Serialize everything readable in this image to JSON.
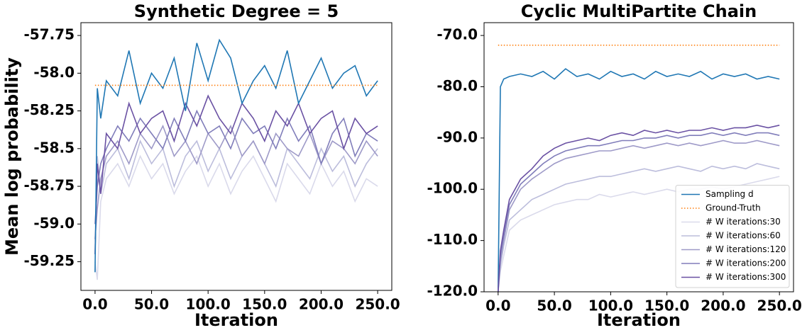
{
  "chart_data": [
    {
      "type": "line",
      "title": "Synthetic Degree = 5",
      "x_label": "Iteration",
      "y_label": "Mean log probability",
      "x": [
        0,
        2,
        5,
        10,
        20,
        30,
        40,
        50,
        60,
        70,
        80,
        90,
        100,
        110,
        120,
        130,
        140,
        150,
        160,
        170,
        180,
        190,
        200,
        210,
        220,
        230,
        240,
        250
      ],
      "xlim": [
        -12.5,
        262.5
      ],
      "ylim": [
        -59.44,
        -57.665
      ],
      "xticks": [
        {
          "value": 0,
          "label": "0.0"
        },
        {
          "value": 50,
          "label": "50.0"
        },
        {
          "value": 100,
          "label": "100.0"
        },
        {
          "value": 150,
          "label": "150.0"
        },
        {
          "value": 200,
          "label": "200.0"
        },
        {
          "value": 250,
          "label": "250.0"
        }
      ],
      "yticks": [
        -57.75,
        {
          "value": -58,
          "label": "-58.0"
        },
        -58.25,
        -58.5,
        -58.75,
        {
          "value": -59,
          "label": "-59.0"
        },
        -59.25
      ],
      "series": [
        {
          "color": "#dadaeb",
          "values": [
            -59.25,
            -59.37,
            -58.85,
            -58.7,
            -58.6,
            -58.75,
            -58.55,
            -58.7,
            -58.6,
            -58.8,
            -58.65,
            -58.55,
            -58.75,
            -58.6,
            -58.8,
            -58.65,
            -58.55,
            -58.7,
            -58.85,
            -58.6,
            -58.7,
            -58.8,
            -58.6,
            -58.75,
            -58.65,
            -58.85,
            -58.7,
            -58.75
          ]
        },
        {
          "color": "#bcbddc",
          "values": [
            -59.2,
            -58.55,
            -58.8,
            -58.6,
            -58.5,
            -58.7,
            -58.45,
            -58.6,
            -58.5,
            -58.75,
            -58.55,
            -58.45,
            -58.65,
            -58.5,
            -58.7,
            -58.55,
            -58.45,
            -58.6,
            -58.75,
            -58.5,
            -58.6,
            -58.7,
            -58.5,
            -58.65,
            -58.55,
            -58.75,
            -58.6,
            -58.5
          ]
        },
        {
          "color": "#9e9ac8",
          "values": [
            -59.1,
            -58.9,
            -58.7,
            -58.55,
            -58.45,
            -58.6,
            -58.4,
            -58.5,
            -58.35,
            -58.55,
            -58.45,
            -58.6,
            -58.4,
            -58.5,
            -58.35,
            -58.55,
            -58.45,
            -58.6,
            -58.4,
            -58.5,
            -58.55,
            -58.4,
            -58.6,
            -58.45,
            -58.5,
            -58.6,
            -58.45,
            -58.55
          ]
        },
        {
          "color": "#807dba",
          "values": [
            -59.0,
            -58.75,
            -58.6,
            -58.5,
            -58.35,
            -58.45,
            -58.3,
            -58.4,
            -58.5,
            -58.3,
            -58.45,
            -58.25,
            -58.4,
            -58.35,
            -58.5,
            -58.3,
            -58.4,
            -58.35,
            -58.5,
            -58.3,
            -58.45,
            -58.35,
            -58.6,
            -58.4,
            -58.3,
            -58.55,
            -58.4,
            -58.45
          ]
        },
        {
          "color": "#6a51a3",
          "values": [
            -59.2,
            -58.6,
            -58.8,
            -58.4,
            -58.5,
            -58.2,
            -58.4,
            -58.3,
            -58.25,
            -58.45,
            -58.2,
            -58.35,
            -58.15,
            -58.3,
            -58.4,
            -58.2,
            -58.3,
            -58.45,
            -58.25,
            -58.35,
            -58.2,
            -58.4,
            -58.3,
            -58.25,
            -58.5,
            -58.3,
            -58.4,
            -58.35
          ]
        },
        {
          "color": "#1f77b4",
          "values": [
            -59.32,
            -58.1,
            -58.3,
            -58.05,
            -58.15,
            -57.85,
            -58.2,
            -58.0,
            -58.1,
            -57.9,
            -58.25,
            -57.8,
            -58.05,
            -57.78,
            -57.9,
            -58.2,
            -58.05,
            -57.95,
            -58.1,
            -57.85,
            -58.2,
            -58.05,
            -57.9,
            -58.1,
            -58.0,
            -57.95,
            -58.15,
            -58.05
          ]
        },
        {
          "color": "#ff7f0e",
          "dash": "dotted",
          "x": [
            0,
            250
          ],
          "values": [
            -58.08,
            -58.08
          ]
        }
      ]
    },
    {
      "type": "line",
      "title": "Cyclic MultiPartite Chain",
      "x_label": "Iteration",
      "legend": "lower right",
      "x": [
        0,
        2,
        5,
        10,
        20,
        30,
        40,
        50,
        60,
        70,
        80,
        90,
        100,
        110,
        120,
        130,
        140,
        150,
        160,
        170,
        180,
        190,
        200,
        210,
        220,
        230,
        240,
        250
      ],
      "xlim": [
        -12.5,
        262.5
      ],
      "ylim": [
        -120,
        -67.5
      ],
      "xticks": [
        {
          "value": 0,
          "label": "0.0"
        },
        {
          "value": 50,
          "label": "50.0"
        },
        {
          "value": 100,
          "label": "100.0"
        },
        {
          "value": 150,
          "label": "150.0"
        },
        {
          "value": 200,
          "label": "200.0"
        },
        {
          "value": 250,
          "label": "250.0"
        }
      ],
      "yticks": [
        {
          "value": -70,
          "label": "-70.0"
        },
        {
          "value": -80,
          "label": "-80.0"
        },
        {
          "value": -90,
          "label": "-90.0"
        },
        {
          "value": -100,
          "label": "-100.0"
        },
        {
          "value": -110,
          "label": "-110.0"
        },
        {
          "value": -120,
          "label": "-120.0"
        }
      ],
      "series": [
        {
          "name": "Sampling d",
          "color": "#1f77b4",
          "values": [
            -120,
            -80,
            -78.5,
            -78,
            -77.5,
            -78,
            -77,
            -78.5,
            -76.5,
            -78,
            -77.5,
            -78.5,
            -77,
            -78,
            -77.5,
            -78.5,
            -77,
            -78,
            -77.5,
            -78,
            -77,
            -78.5,
            -77.5,
            -78,
            -77.5,
            -78.5,
            -78,
            -78.5
          ]
        },
        {
          "name": "Ground-Truth",
          "color": "#ff7f0e",
          "dash": "dotted",
          "x": [
            0,
            250
          ],
          "values": [
            -71.9,
            -71.9
          ]
        },
        {
          "name": "# W iterations:30",
          "color": "#dadaeb",
          "values": [
            -120,
            -116,
            -113,
            -108,
            -106,
            -105,
            -104,
            -103,
            -102.5,
            -102,
            -102,
            -101,
            -101.5,
            -101,
            -100.5,
            -101,
            -100.5,
            -100,
            -100.5,
            -100,
            -100,
            -99.5,
            -100,
            -99.5,
            -99,
            -98.5,
            -98,
            -97.5
          ]
        },
        {
          "name": "# W iterations:60",
          "color": "#bcbddc",
          "values": [
            -120,
            -115,
            -111,
            -106,
            -104,
            -102,
            -101,
            -100,
            -99,
            -98.5,
            -98,
            -97.5,
            -97.5,
            -97,
            -96.5,
            -96,
            -96.5,
            -96,
            -95.5,
            -96,
            -96.5,
            -95.5,
            -96,
            -95.5,
            -96,
            -95,
            -95.5,
            -96
          ]
        },
        {
          "name": "# W iterations:120",
          "color": "#9e9ac8",
          "values": [
            -120,
            -114,
            -110,
            -104,
            -100,
            -98,
            -96.5,
            -95,
            -94,
            -93.5,
            -93,
            -92.5,
            -92.5,
            -92,
            -91.5,
            -92,
            -91.5,
            -91,
            -91.5,
            -91,
            -91.5,
            -91,
            -90.5,
            -91,
            -91,
            -90.5,
            -91,
            -91.5
          ]
        },
        {
          "name": "# W iterations:200",
          "color": "#807dba",
          "values": [
            -120,
            -113,
            -109,
            -103,
            -99,
            -97,
            -95,
            -93.5,
            -92.5,
            -92,
            -91.5,
            -91.5,
            -91,
            -90.5,
            -90.5,
            -90,
            -90,
            -89.5,
            -90,
            -89.5,
            -89.5,
            -89,
            -89.5,
            -89,
            -89.5,
            -89,
            -89,
            -89.5
          ]
        },
        {
          "name": "# W iterations:300",
          "color": "#6a51a3",
          "values": [
            -120,
            -112,
            -108,
            -102,
            -98,
            -96,
            -93.5,
            -92,
            -91,
            -90.5,
            -90,
            -90.5,
            -89.5,
            -89,
            -89.5,
            -88.5,
            -89,
            -88.5,
            -89,
            -88.5,
            -88.5,
            -88,
            -88.5,
            -88,
            -88,
            -87.5,
            -88,
            -87.5
          ]
        }
      ]
    }
  ]
}
